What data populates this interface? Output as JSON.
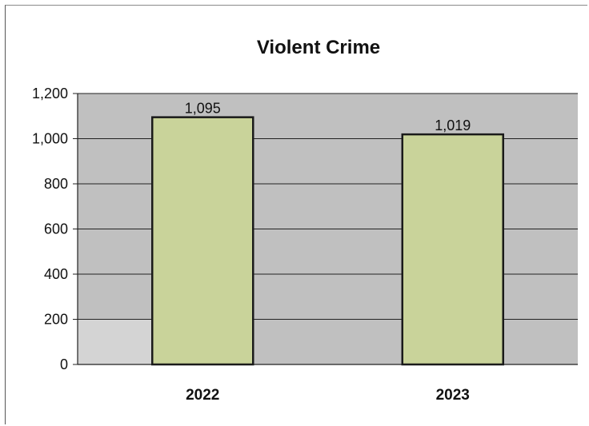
{
  "chart_data": {
    "type": "bar",
    "title": "Violent Crime",
    "categories": [
      "2022",
      "2023"
    ],
    "values": [
      1095,
      1019
    ],
    "data_labels": [
      "1,095",
      "1,019"
    ],
    "ylim": [
      0,
      1200
    ],
    "yticks": [
      0,
      200,
      400,
      600,
      800,
      1000,
      1200
    ],
    "ytick_labels": [
      "0",
      "200",
      "400",
      "600",
      "800",
      "1,000",
      "1,200"
    ],
    "xlabel": "",
    "ylabel": "",
    "grid": true,
    "legend": "none",
    "colors": {
      "bar": "#c9d39a",
      "bar_border": "#1a1a1a",
      "plot_background": "#c0c0c0",
      "gridline": "#222222"
    }
  }
}
